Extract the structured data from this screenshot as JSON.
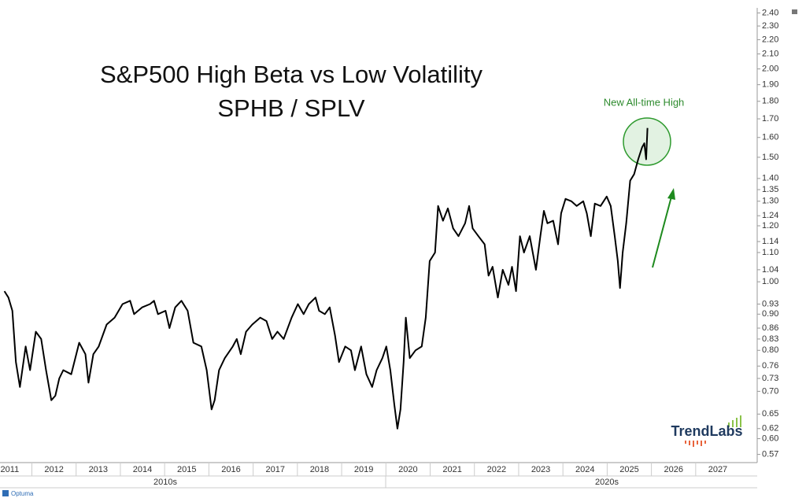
{
  "chart_data": {
    "type": "line",
    "title": "S&P500 High Beta vs Low Volatility",
    "subtitle": "SPHB / SPLV",
    "annotation": "New All-time High",
    "logo": "TrendLabs",
    "source": "Optuma",
    "color": "#000000",
    "log_scale": true,
    "xlim": [
      2011.28,
      2028.39
    ],
    "ylim": [
      0.555,
      2.44
    ],
    "xticks": [
      2011,
      2012,
      2013,
      2014,
      2015,
      2016,
      2017,
      2018,
      2019,
      2020,
      2021,
      2022,
      2023,
      2024,
      2025,
      2026,
      2027
    ],
    "decades": [
      "2010s",
      "2020s"
    ],
    "yticks": [
      {
        "value": 0.57,
        "label": "0.57"
      },
      {
        "value": 0.6,
        "label": "0.60"
      },
      {
        "value": 0.62,
        "label": "0.62"
      },
      {
        "value": 0.65,
        "label": "0.65"
      },
      {
        "value": 0.7,
        "label": "0.70"
      },
      {
        "value": 0.73,
        "label": "0.73"
      },
      {
        "value": 0.76,
        "label": "0.76"
      },
      {
        "value": 0.8,
        "label": "0.80"
      },
      {
        "value": 0.83,
        "label": "0.83"
      },
      {
        "value": 0.86,
        "label": "0.86"
      },
      {
        "value": 0.9,
        "label": "0.90"
      },
      {
        "value": 0.93,
        "label": "0.93"
      },
      {
        "value": 1.0,
        "label": "1.00"
      },
      {
        "value": 1.04,
        "label": "1.04"
      },
      {
        "value": 1.1,
        "label": "1.10"
      },
      {
        "value": 1.14,
        "label": "1.14"
      },
      {
        "value": 1.2,
        "label": "1.20"
      },
      {
        "value": 1.24,
        "label": "1.24"
      },
      {
        "value": 1.3,
        "label": "1.30"
      },
      {
        "value": 1.35,
        "label": "1.35"
      },
      {
        "value": 1.4,
        "label": "1.40"
      },
      {
        "value": 1.5,
        "label": "1.50"
      },
      {
        "value": 1.6,
        "label": "1.60"
      },
      {
        "value": 1.7,
        "label": "1.70"
      },
      {
        "value": 1.8,
        "label": "1.80"
      },
      {
        "value": 1.9,
        "label": "1.90"
      },
      {
        "value": 2.0,
        "label": "2.00"
      },
      {
        "value": 2.1,
        "label": "2.10"
      },
      {
        "value": 2.2,
        "label": "2.20"
      },
      {
        "value": 2.3,
        "label": "2.30"
      },
      {
        "value": 2.4,
        "label": "2.40"
      }
    ],
    "x": [
      2011.38,
      2011.47,
      2011.56,
      2011.64,
      2011.73,
      2011.86,
      2011.96,
      2012.09,
      2012.21,
      2012.32,
      2012.44,
      2012.53,
      2012.62,
      2012.71,
      2012.89,
      2013.07,
      2013.21,
      2013.28,
      2013.39,
      2013.51,
      2013.69,
      2013.87,
      2014.05,
      2014.22,
      2014.31,
      2014.49,
      2014.67,
      2014.76,
      2014.85,
      2015.02,
      2015.11,
      2015.24,
      2015.38,
      2015.52,
      2015.65,
      2015.83,
      2015.95,
      2016.06,
      2016.13,
      2016.23,
      2016.36,
      2016.54,
      2016.63,
      2016.72,
      2016.84,
      2016.98,
      2017.16,
      2017.3,
      2017.43,
      2017.55,
      2017.69,
      2017.87,
      2018.01,
      2018.14,
      2018.26,
      2018.41,
      2018.49,
      2018.62,
      2018.73,
      2018.85,
      2018.94,
      2019.08,
      2019.21,
      2019.3,
      2019.44,
      2019.56,
      2019.69,
      2019.79,
      2019.92,
      2020.01,
      2020.1,
      2020.19,
      2020.26,
      2020.33,
      2020.4,
      2020.45,
      2020.54,
      2020.67,
      2020.81,
      2020.9,
      2020.99,
      2021.11,
      2021.18,
      2021.29,
      2021.4,
      2021.52,
      2021.64,
      2021.79,
      2021.88,
      2021.96,
      2022.09,
      2022.23,
      2022.32,
      2022.41,
      2022.53,
      2022.64,
      2022.77,
      2022.85,
      2022.94,
      2023.03,
      2023.12,
      2023.25,
      2023.39,
      2023.49,
      2023.57,
      2023.65,
      2023.78,
      2023.89,
      2023.96,
      2024.06,
      2024.19,
      2024.31,
      2024.46,
      2024.54,
      2024.63,
      2024.72,
      2024.85,
      2024.99,
      2025.08,
      2025.17,
      2025.24,
      2025.29,
      2025.35,
      2025.43,
      2025.52,
      2025.61,
      2025.7,
      2025.79,
      2025.84,
      2025.88,
      2025.91
    ],
    "values": [
      0.97,
      0.95,
      0.91,
      0.77,
      0.71,
      0.81,
      0.75,
      0.85,
      0.83,
      0.75,
      0.68,
      0.69,
      0.73,
      0.75,
      0.74,
      0.82,
      0.79,
      0.72,
      0.79,
      0.81,
      0.87,
      0.89,
      0.93,
      0.94,
      0.9,
      0.92,
      0.93,
      0.94,
      0.9,
      0.91,
      0.86,
      0.92,
      0.94,
      0.91,
      0.82,
      0.81,
      0.75,
      0.66,
      0.68,
      0.75,
      0.78,
      0.81,
      0.83,
      0.79,
      0.85,
      0.87,
      0.89,
      0.88,
      0.83,
      0.85,
      0.83,
      0.89,
      0.93,
      0.9,
      0.93,
      0.95,
      0.91,
      0.9,
      0.92,
      0.84,
      0.77,
      0.81,
      0.8,
      0.75,
      0.81,
      0.74,
      0.71,
      0.75,
      0.78,
      0.81,
      0.75,
      0.67,
      0.62,
      0.66,
      0.77,
      0.89,
      0.78,
      0.8,
      0.81,
      0.89,
      1.07,
      1.1,
      1.28,
      1.22,
      1.27,
      1.19,
      1.16,
      1.21,
      1.28,
      1.19,
      1.16,
      1.13,
      1.02,
      1.05,
      0.95,
      1.04,
      0.99,
      1.05,
      0.97,
      1.16,
      1.1,
      1.16,
      1.04,
      1.16,
      1.26,
      1.21,
      1.22,
      1.13,
      1.25,
      1.31,
      1.3,
      1.28,
      1.3,
      1.25,
      1.16,
      1.29,
      1.28,
      1.32,
      1.28,
      1.16,
      1.07,
      0.98,
      1.1,
      1.21,
      1.39,
      1.42,
      1.49,
      1.55,
      1.57,
      1.49,
      1.65
    ]
  }
}
